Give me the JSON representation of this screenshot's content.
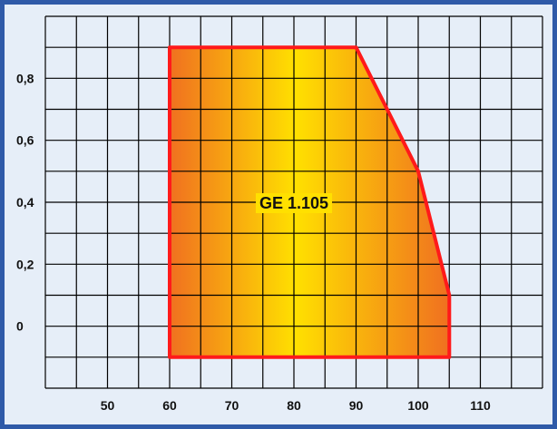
{
  "colors": {
    "frame_border": "#2f5aa8",
    "background": "#e6eef8",
    "grid": "#000000",
    "envelope_outline": "#ff1a1a",
    "gradient_edge": "#f07020",
    "gradient_center": "#ffe000"
  },
  "chart_data": {
    "type": "area",
    "title": "",
    "xlabel": "",
    "ylabel": "",
    "xlim": [
      40,
      120
    ],
    "ylim": [
      -0.2,
      1.0
    ],
    "x_ticks": [
      50,
      60,
      70,
      80,
      90,
      100,
      110
    ],
    "x_tick_labels": [
      "50",
      "60",
      "70",
      "80",
      "90",
      "100",
      "110"
    ],
    "y_ticks": [
      0,
      0.2,
      0.4,
      0.6,
      0.8
    ],
    "y_tick_labels": [
      "0",
      "0,2",
      "0,4",
      "0,6",
      "0,8"
    ],
    "grid": true,
    "series": [
      {
        "label": "GE 1.105",
        "points": [
          [
            60,
            -0.1
          ],
          [
            60,
            0.9
          ],
          [
            90,
            0.9
          ],
          [
            100,
            0.5
          ],
          [
            105,
            0.1
          ],
          [
            105,
            -0.1
          ]
        ]
      }
    ]
  }
}
